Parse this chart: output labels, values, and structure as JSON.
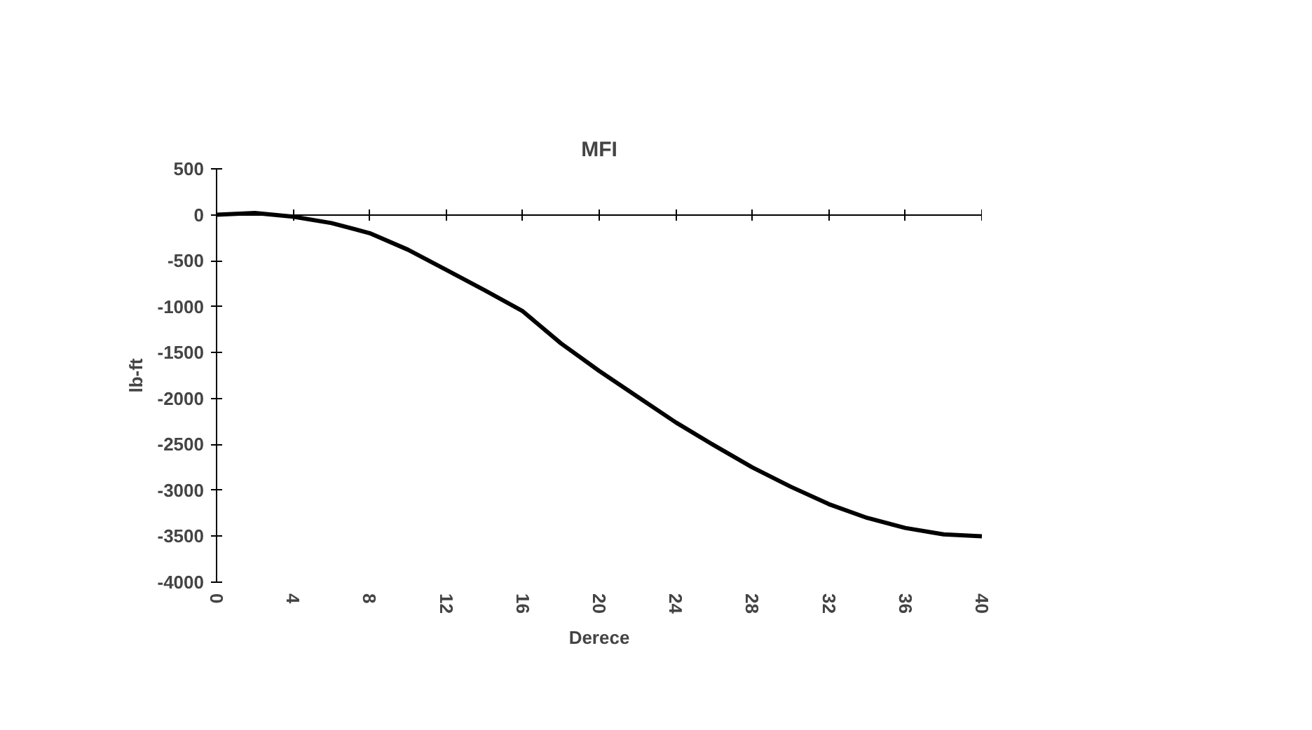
{
  "chart_data": {
    "type": "line",
    "title": "MFI",
    "xlabel": "Derece",
    "ylabel": "lb-ft",
    "x": [
      0,
      2,
      4,
      6,
      8,
      10,
      12,
      14,
      16,
      18,
      20,
      22,
      24,
      26,
      28,
      30,
      32,
      34,
      36,
      38,
      40
    ],
    "series": [
      {
        "color": "#000000",
        "values": [
          0,
          20,
          -20,
          -90,
          -200,
          -380,
          -600,
          -820,
          -1050,
          -1400,
          -1700,
          -1980,
          -2260,
          -2510,
          -2750,
          -2960,
          -3150,
          -3300,
          -3410,
          -3480,
          -3500
        ]
      }
    ],
    "xlim": [
      0,
      40
    ],
    "xticks": [
      0,
      4,
      8,
      12,
      16,
      20,
      24,
      28,
      32,
      36,
      40
    ],
    "ylim": [
      -4000,
      500
    ],
    "yticks": [
      500,
      0,
      -500,
      -1000,
      -1500,
      -2000,
      -2500,
      -3000,
      -3500,
      -4000
    ],
    "marker": "none",
    "line_style": "solid"
  }
}
